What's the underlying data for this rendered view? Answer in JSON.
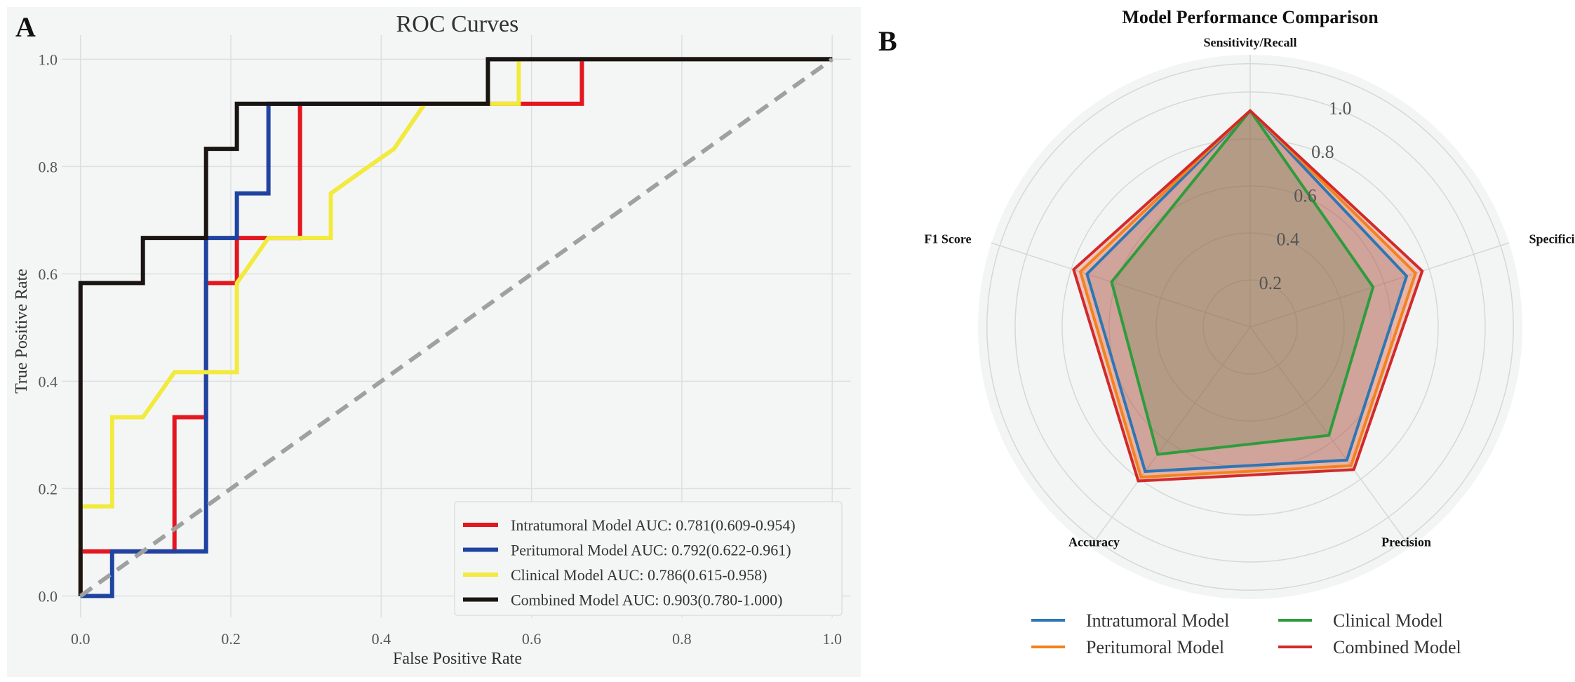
{
  "panel_labels": {
    "a": "A",
    "b": "B"
  },
  "colors": {
    "intratumoral_roc": "#e3171f",
    "peritumoral_roc": "#1f43a0",
    "clinical_roc": "#f2ea3e",
    "combined_roc": "#1a1412",
    "diagonal": "#a0a0a0",
    "intratumoral_radar": "#2e76b4",
    "peritumoral_radar": "#f3821e",
    "clinical_radar": "#2e9c3d",
    "combined_radar": "#d22a2a"
  },
  "chart_data": [
    {
      "type": "line",
      "title": "ROC Curves",
      "xlabel": "False Positive Rate",
      "ylabel": "True Positive Rate",
      "xlim": [
        -0.025,
        1.025
      ],
      "ylim": [
        -0.04,
        1.045
      ],
      "xticks": [
        0.0,
        0.2,
        0.4,
        0.6,
        0.8,
        1.0
      ],
      "xtick_labels": [
        "0.0",
        "0.2",
        "0.4",
        "0.6",
        "0.8",
        "1.0"
      ],
      "yticks": [
        0.0,
        0.2,
        0.4,
        0.6,
        0.8,
        1.0
      ],
      "ytick_labels": [
        "0.0",
        "0.2",
        "0.4",
        "0.6",
        "0.8",
        "1.0"
      ],
      "grid": true,
      "legend_position": "lower-right",
      "series": [
        {
          "key": "intratumoral",
          "name": "Intratumoral Model AUC: 0.781(0.609-0.954)",
          "color": "#e3171f",
          "x": [
            0,
            0,
            0.125,
            0.125,
            0.167,
            0.167,
            0.208,
            0.208,
            0.25,
            0.292,
            0.292,
            0.583,
            0.583,
            0.667,
            0.667,
            1.0
          ],
          "y": [
            0,
            0.083,
            0.083,
            0.333,
            0.333,
            0.583,
            0.583,
            0.667,
            0.667,
            0.667,
            0.917,
            0.917,
            0.917,
            0.917,
            1.0,
            1.0
          ]
        },
        {
          "key": "peritumoral",
          "name": "Peritumoral Model AUC: 0.792(0.622-0.961)",
          "color": "#1f43a0",
          "x": [
            0,
            0.042,
            0.042,
            0.167,
            0.167,
            0.208,
            0.208,
            0.25,
            0.25,
            0.542,
            0.542,
            1.0
          ],
          "y": [
            0,
            0,
            0.083,
            0.083,
            0.667,
            0.667,
            0.75,
            0.75,
            0.917,
            0.917,
            1.0,
            1.0
          ]
        },
        {
          "key": "clinical",
          "name": "Clinical Model AUC: 0.786(0.615-0.958)",
          "color": "#f2ea3e",
          "x": [
            0,
            0,
            0.042,
            0.042,
            0.083,
            0.125,
            0.208,
            0.208,
            0.25,
            0.333,
            0.333,
            0.375,
            0.417,
            0.458,
            0.542,
            0.583,
            0.583,
            1.0
          ],
          "y": [
            0,
            0.167,
            0.167,
            0.333,
            0.333,
            0.417,
            0.417,
            0.583,
            0.667,
            0.667,
            0.75,
            0.792,
            0.833,
            0.917,
            0.917,
            0.917,
            1.0,
            1.0
          ]
        },
        {
          "key": "combined",
          "name": "Combined Model AUC: 0.903(0.780-1.000)",
          "color": "#1a1412",
          "x": [
            0,
            0,
            0.083,
            0.083,
            0.167,
            0.167,
            0.208,
            0.208,
            0.542,
            0.542,
            1.0
          ],
          "y": [
            0,
            0.583,
            0.583,
            0.667,
            0.667,
            0.833,
            0.833,
            0.917,
            0.917,
            1.0,
            1.0
          ]
        }
      ],
      "reference_line": {
        "x": [
          0,
          1
        ],
        "y": [
          0,
          1
        ],
        "style": "dashed"
      }
    },
    {
      "type": "radar",
      "title": "Model Performance Comparison",
      "axes": [
        "Sensitivity/Recall",
        "Specificity",
        "Precision",
        "Accuracy",
        "F1 Score"
      ],
      "rlim": [
        0,
        1.0
      ],
      "rticks": [
        0.2,
        0.4,
        0.6,
        0.8,
        1.0
      ],
      "rtick_labels": [
        "0.2",
        "0.4",
        "0.6",
        "0.8",
        "1.0"
      ],
      "legend_position": "bottom",
      "series": [
        {
          "key": "intratumoral",
          "name": "Intratumoral Model",
          "color": "#2e76b4",
          "values": [
            0.92,
            0.7,
            0.7,
            0.76,
            0.73
          ]
        },
        {
          "key": "peritumoral",
          "name": "Peritumoral Model",
          "color": "#f3821e",
          "values": [
            0.92,
            0.74,
            0.73,
            0.79,
            0.76
          ]
        },
        {
          "key": "clinical",
          "name": "Clinical Model",
          "color": "#2e9c3d",
          "values": [
            0.92,
            0.55,
            0.57,
            0.67,
            0.62
          ]
        },
        {
          "key": "combined",
          "name": "Combined Model",
          "color": "#d22a2a",
          "values": [
            0.92,
            0.77,
            0.75,
            0.81,
            0.79
          ]
        }
      ]
    }
  ]
}
